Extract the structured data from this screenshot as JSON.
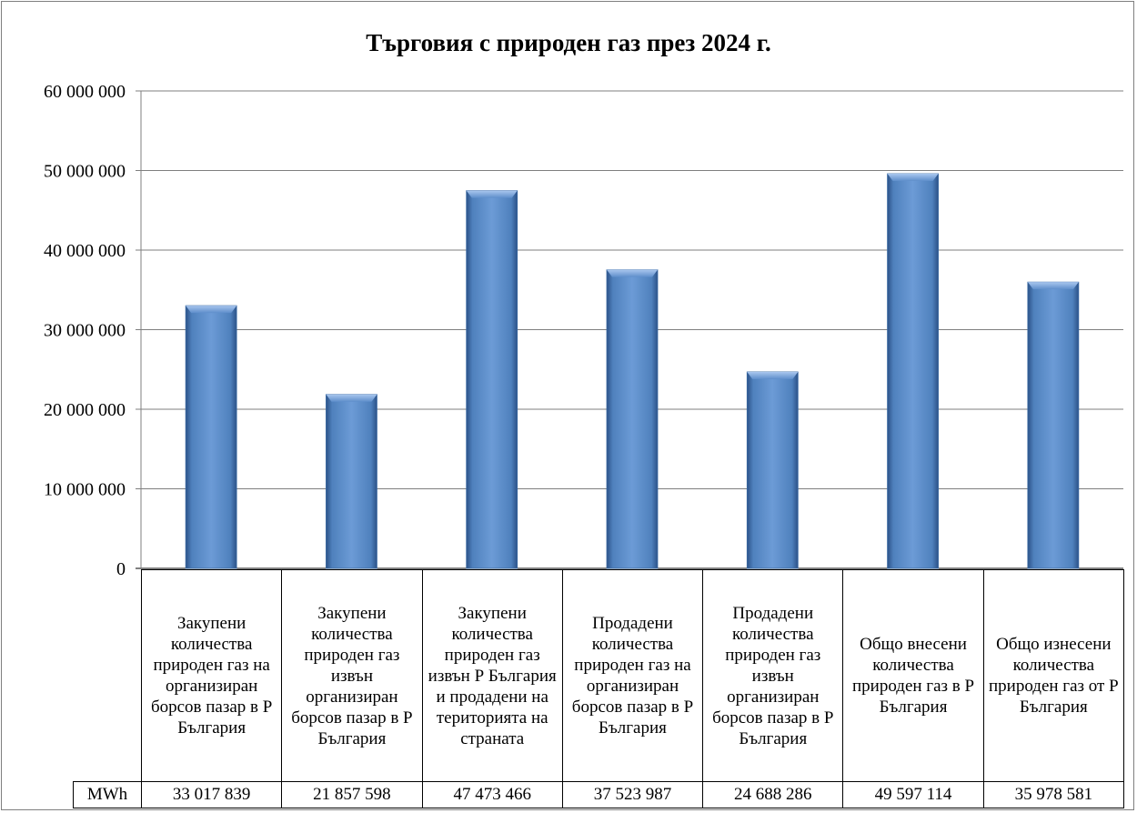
{
  "chart_data": {
    "type": "bar",
    "title": "Търговия с природен газ през 2024 г.",
    "unit": "MWh",
    "ylim": [
      0,
      60000000
    ],
    "yticks": [
      0,
      10000000,
      20000000,
      30000000,
      40000000,
      50000000,
      60000000
    ],
    "ytick_labels": [
      "0",
      "10 000 000",
      "20 000 000",
      "30 000 000",
      "40 000 000",
      "50 000 000",
      "60 000 000"
    ],
    "grid": true,
    "legend": "none",
    "categories": [
      "Закупени количества природен газ на организиран борсов пазар в Р България",
      "Закупени количества природен газ извън организиран борсов пазар в Р България",
      "Закупени количества природен газ извън Р България и продадени на територията на страната",
      "Продадени количества природен газ на организиран борсов пазар в Р България",
      "Продадени количества природен газ извън организиран борсов пазар в Р България",
      "Общо внесени количества природен газ в Р България",
      "Общо изнесени количества природен газ от Р България"
    ],
    "values": [
      33017839,
      21857598,
      47473466,
      37523987,
      24688286,
      49597114,
      35978581
    ],
    "value_labels": [
      "33 017 839",
      "21 857 598",
      "47 473 466",
      "37 523 987",
      "24 688 286",
      "49 597 114",
      "35 978 581"
    ],
    "bar_color": "#4f81bd"
  }
}
